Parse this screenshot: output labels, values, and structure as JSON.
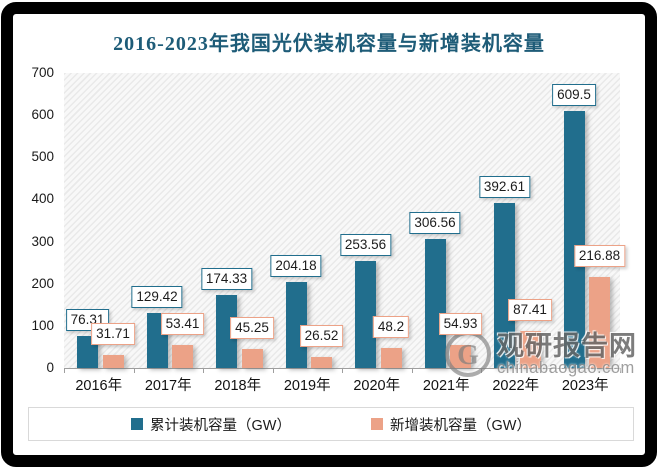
{
  "title": "2016-2023年我国光伏装机容量与新增装机容量",
  "chart_data": {
    "type": "bar",
    "title": "2016-2023年我国光伏装机容量与新增装机容量",
    "categories": [
      "2016年",
      "2017年",
      "2018年",
      "2019年",
      "2020年",
      "2021年",
      "2022年",
      "2023年"
    ],
    "series": [
      {
        "name": "累计装机容量（GW）",
        "color": "#216E8D",
        "values": [
          76.31,
          129.42,
          174.33,
          204.18,
          253.56,
          306.56,
          392.61,
          609.5
        ]
      },
      {
        "name": "新增装机容量（GW）",
        "color": "#ECA287",
        "values": [
          31.71,
          53.41,
          45.25,
          26.52,
          48.2,
          54.93,
          87.41,
          216.88
        ]
      }
    ],
    "xlabel": "",
    "ylabel": "",
    "ylim": [
      0,
      700
    ],
    "ytick_step": 100,
    "yticks": [
      0,
      100,
      200,
      300,
      400,
      500,
      600,
      700
    ],
    "grid": false,
    "legend_position": "bottom",
    "plot_background": "diagonal-hatch",
    "data_labels": true
  },
  "watermark": {
    "logo_icon": "g-circle-logo",
    "text": "观研报告网",
    "url": "chinabaogao.com"
  },
  "colors": {
    "title": "#1E5C78",
    "series1": "#216E8D",
    "series2": "#ECA287",
    "axis_line": "#9E9E9E",
    "legend_border": "#D9D9D9",
    "watermark_gray": "#676767"
  }
}
